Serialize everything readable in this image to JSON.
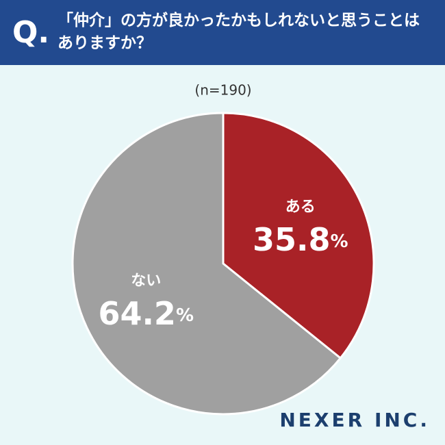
{
  "chart_data": {
    "type": "pie",
    "question_mark": "Q.",
    "title": "「仲介」の方が良かったかもしれないと思うことはありますか？",
    "subtitle": "(n=190)",
    "categories": [
      "ある",
      "ない"
    ],
    "values": [
      35.8,
      64.2
    ],
    "value_labels": [
      "35.8%",
      "64.2%"
    ],
    "colors": [
      "#a92227",
      "#a0a0a0"
    ],
    "logo": "NEXER INC."
  }
}
